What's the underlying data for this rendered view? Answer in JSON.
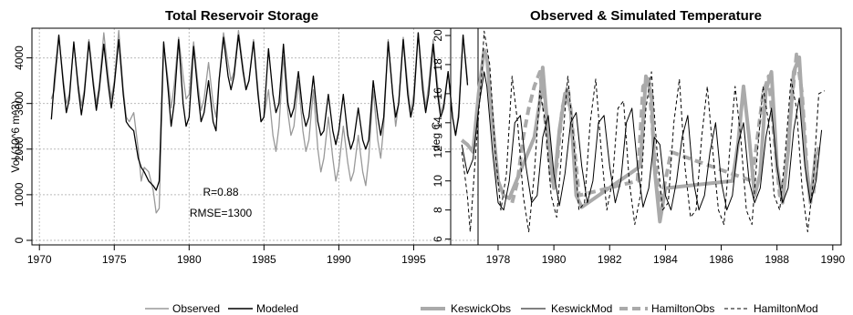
{
  "chart_data": [
    {
      "type": "line",
      "title": "Total Reservoir Storage",
      "xlabel": "",
      "ylabel": "Vol (10^6 m^3)",
      "xlim": [
        1969.5,
        1999.3
      ],
      "ylim": [
        -100,
        4650
      ],
      "xticks": [
        1970,
        1975,
        1980,
        1985,
        1990,
        1995
      ],
      "yticks": [
        0,
        1000,
        2000,
        3000,
        4000
      ],
      "grid": true,
      "legend_position": "bottom",
      "annotations": [
        "R=0.88",
        "RMSE=1300"
      ],
      "series": [
        {
          "name": "Observed",
          "color": "#999999",
          "x": [
            1970.8,
            1971.0,
            1971.3,
            1971.6,
            1971.8,
            1972.0,
            1972.3,
            1972.6,
            1972.8,
            1973.0,
            1973.3,
            1973.6,
            1973.8,
            1974.0,
            1974.3,
            1974.6,
            1974.8,
            1975.0,
            1975.3,
            1975.6,
            1975.8,
            1976.0,
            1976.3,
            1976.6,
            1976.8,
            1977.0,
            1977.3,
            1977.6,
            1977.8,
            1978.0,
            1978.3,
            1978.6,
            1978.8,
            1979.0,
            1979.3,
            1979.6,
            1979.8,
            1980.0,
            1980.3,
            1980.6,
            1980.8,
            1981.0,
            1981.3,
            1981.6,
            1981.8,
            1982.0,
            1982.3,
            1982.6,
            1982.8,
            1983.0,
            1983.3,
            1983.6,
            1983.8,
            1984.0,
            1984.3,
            1984.6,
            1984.8,
            1985.0,
            1985.3,
            1985.6,
            1985.8,
            1986.0,
            1986.3,
            1986.6,
            1986.8,
            1987.0,
            1987.3,
            1987.6,
            1987.8,
            1988.0,
            1988.3,
            1988.6,
            1988.8,
            1989.0,
            1989.3,
            1989.6,
            1989.8,
            1990.0,
            1990.3,
            1990.6,
            1990.8,
            1991.0,
            1991.3,
            1991.6,
            1991.8,
            1992.0,
            1992.3,
            1992.6,
            1992.8,
            1993.0,
            1993.3,
            1993.6,
            1993.8,
            1994.0,
            1994.3,
            1994.6,
            1994.8,
            1995.0,
            1995.3,
            1995.6,
            1995.8,
            1996.0,
            1996.3,
            1996.6,
            1996.8,
            1997.0,
            1997.3,
            1997.6,
            1997.8,
            1998.0,
            1998.3,
            1998.6
          ],
          "y": [
            3100,
            3300,
            4450,
            3500,
            3000,
            3200,
            4300,
            3400,
            2950,
            3300,
            4400,
            3500,
            3000,
            3400,
            4550,
            3600,
            3100,
            3500,
            4600,
            3300,
            2700,
            2600,
            2800,
            2000,
            1300,
            1600,
            1500,
            1100,
            600,
            700,
            4300,
            3500,
            2900,
            3400,
            4450,
            3600,
            3100,
            3200,
            4350,
            3400,
            2850,
            3100,
            3900,
            3000,
            2700,
            3500,
            4550,
            3900,
            3500,
            3700,
            4600,
            3800,
            3300,
            3500,
            4400,
            3300,
            2600,
            2700,
            3300,
            2300,
            1950,
            2500,
            4050,
            2800,
            2300,
            2500,
            3500,
            2400,
            1950,
            2200,
            3300,
            2000,
            1500,
            1800,
            2700,
            1800,
            1300,
            1600,
            2500,
            1700,
            1300,
            1500,
            2300,
            1500,
            1200,
            1800,
            3300,
            2200,
            1800,
            2500,
            4400,
            3200,
            2500,
            3000,
            4450,
            3400,
            2800,
            3200,
            4550,
            3500,
            2900,
            3400,
            4400,
            3400,
            2800,
            3000,
            3700,
            2700,
            2300,
            2800,
            4500,
            3500
          ]
        },
        {
          "name": "Modeled",
          "color": "#000000",
          "x": [
            1970.8,
            1971.0,
            1971.3,
            1971.6,
            1971.8,
            1972.0,
            1972.3,
            1972.6,
            1972.8,
            1973.0,
            1973.3,
            1973.6,
            1973.8,
            1974.0,
            1974.3,
            1974.6,
            1974.8,
            1975.0,
            1975.3,
            1975.6,
            1975.8,
            1976.0,
            1976.3,
            1976.6,
            1976.8,
            1977.0,
            1977.3,
            1977.6,
            1977.8,
            1978.0,
            1978.3,
            1978.6,
            1978.8,
            1979.0,
            1979.3,
            1979.6,
            1979.8,
            1980.0,
            1980.3,
            1980.6,
            1980.8,
            1981.0,
            1981.3,
            1981.6,
            1981.8,
            1982.0,
            1982.3,
            1982.6,
            1982.8,
            1983.0,
            1983.3,
            1983.6,
            1983.8,
            1984.0,
            1984.3,
            1984.6,
            1984.8,
            1985.0,
            1985.3,
            1985.6,
            1985.8,
            1986.0,
            1986.3,
            1986.6,
            1986.8,
            1987.0,
            1987.3,
            1987.6,
            1987.8,
            1988.0,
            1988.3,
            1988.6,
            1988.8,
            1989.0,
            1989.3,
            1989.6,
            1989.8,
            1990.0,
            1990.3,
            1990.6,
            1990.8,
            1991.0,
            1991.3,
            1991.6,
            1991.8,
            1992.0,
            1992.3,
            1992.6,
            1992.8,
            1993.0,
            1993.3,
            1993.6,
            1993.8,
            1994.0,
            1994.3,
            1994.6,
            1994.8,
            1995.0,
            1995.3,
            1995.6,
            1995.8,
            1996.0,
            1996.3,
            1996.6,
            1996.8,
            1997.0,
            1997.3,
            1997.6,
            1997.8,
            1998.0,
            1998.3,
            1998.6
          ],
          "y": [
            2650,
            3500,
            4500,
            3400,
            2800,
            3100,
            4350,
            3300,
            2750,
            3200,
            4350,
            3400,
            2850,
            3300,
            4300,
            3400,
            2900,
            3400,
            4400,
            3200,
            2600,
            2500,
            2400,
            1800,
            1600,
            1500,
            1300,
            1200,
            1100,
            1300,
            4350,
            3300,
            2500,
            3000,
            4400,
            3000,
            2500,
            2700,
            4250,
            3200,
            2600,
            2800,
            3500,
            2600,
            2400,
            3500,
            4450,
            3600,
            3300,
            3600,
            4500,
            3700,
            3300,
            3500,
            4350,
            3200,
            2600,
            2700,
            4200,
            3200,
            2800,
            3000,
            4300,
            3000,
            2700,
            2900,
            3700,
            2800,
            2500,
            2700,
            3600,
            2600,
            2300,
            2400,
            3200,
            2400,
            2100,
            2400,
            3200,
            2300,
            2000,
            2200,
            2900,
            2200,
            2000,
            2200,
            3500,
            2700,
            2300,
            2700,
            4350,
            3200,
            2700,
            3000,
            4400,
            3200,
            2700,
            3000,
            4550,
            3300,
            2800,
            3200,
            4300,
            3200,
            2700,
            2900,
            3700,
            2700,
            2300,
            2700,
            4500,
            3400
          ]
        }
      ]
    },
    {
      "type": "line",
      "title": "Observed & Simulated Temperature",
      "xlabel": "",
      "ylabel": "deg C",
      "xlim": [
        1976.3,
        1990.3
      ],
      "ylim": [
        5.6,
        20.5
      ],
      "xticks": [
        1978,
        1980,
        1982,
        1984,
        1986,
        1988,
        1990
      ],
      "yticks": [
        6,
        8,
        10,
        12,
        14,
        16,
        18,
        20
      ],
      "grid": false,
      "legend_position": "bottom",
      "series": [
        {
          "name": "KeswickObs",
          "color": "#aaaaaa",
          "x": [
            1976.7,
            1976.9,
            1977.1,
            1977.3,
            1977.5,
            1977.6,
            1977.8,
            1978.0,
            1978.2,
            1978.4,
            1979.3,
            1979.5,
            1979.6,
            1979.8,
            1980.0,
            1980.2,
            1980.4,
            1980.6,
            1980.8,
            1981.0,
            1983.1,
            1983.3,
            1983.5,
            1983.6,
            1983.8,
            1984.0,
            1986.4,
            1986.6,
            1986.8,
            1987.0,
            1987.2,
            1987.4,
            1987.6,
            1987.8,
            1988.0,
            1988.2,
            1988.4,
            1988.6,
            1988.8,
            1989.0,
            1989.2,
            1989.4
          ],
          "y": [
            12.8,
            12.5,
            12.0,
            16.0,
            19.0,
            18.5,
            14.0,
            10.0,
            9.0,
            8.8,
            13.0,
            15.5,
            17.8,
            13.0,
            9.5,
            13.5,
            16.0,
            15.0,
            9.0,
            8.2,
            11.0,
            17.2,
            16.0,
            11.0,
            7.2,
            9.5,
            10.0,
            12.5,
            16.5,
            13.0,
            9.0,
            10.5,
            16.2,
            17.5,
            11.0,
            8.5,
            12.0,
            17.5,
            18.5,
            12.0,
            8.5,
            12.0
          ]
        },
        {
          "name": "KeswickMod",
          "color": "#000000",
          "x": [
            1976.7,
            1976.9,
            1977.1,
            1977.3,
            1977.5,
            1977.6,
            1977.8,
            1978.0,
            1978.2,
            1978.4,
            1978.6,
            1978.8,
            1979.0,
            1979.2,
            1979.4,
            1979.6,
            1979.8,
            1980.0,
            1980.2,
            1980.4,
            1980.6,
            1980.8,
            1981.0,
            1981.2,
            1981.4,
            1981.6,
            1981.8,
            1982.0,
            1982.2,
            1982.4,
            1982.6,
            1982.8,
            1983.0,
            1983.2,
            1983.4,
            1983.6,
            1983.8,
            1984.0,
            1984.2,
            1984.4,
            1984.6,
            1984.8,
            1985.0,
            1985.2,
            1985.4,
            1985.6,
            1985.8,
            1986.0,
            1986.2,
            1986.4,
            1986.6,
            1986.8,
            1987.0,
            1987.2,
            1987.4,
            1987.6,
            1987.8,
            1988.0,
            1988.2,
            1988.4,
            1988.6,
            1988.8,
            1989.0,
            1989.2,
            1989.4,
            1989.6
          ],
          "y": [
            12.5,
            10.5,
            11.5,
            15.0,
            17.5,
            16.5,
            12.0,
            8.5,
            8.0,
            10.0,
            14.0,
            14.5,
            11.0,
            8.5,
            9.0,
            13.0,
            14.5,
            10.5,
            8.3,
            10.5,
            14.0,
            14.7,
            11.0,
            8.5,
            10.0,
            14.0,
            14.5,
            11.0,
            8.5,
            10.0,
            14.0,
            15.0,
            11.0,
            8.2,
            9.5,
            13.0,
            12.5,
            9.0,
            8.0,
            10.0,
            13.0,
            14.5,
            10.0,
            8.0,
            9.0,
            12.0,
            14.0,
            10.0,
            8.0,
            9.0,
            12.5,
            14.0,
            10.0,
            8.5,
            9.5,
            13.0,
            15.0,
            11.0,
            8.5,
            9.5,
            13.5,
            15.7,
            11.0,
            8.5,
            10.0,
            13.5
          ]
        },
        {
          "name": "HamiltonObs",
          "color": "#aaaaaa",
          "x": [
            1978.5,
            1978.7,
            1978.9,
            1979.1,
            1979.3,
            1979.5,
            1979.7,
            1979.9,
            1980.1,
            1980.3,
            1980.5,
            1980.7,
            1980.9,
            1983.0,
            1983.2,
            1983.4,
            1983.6,
            1983.8,
            1984.0,
            1984.2,
            1987.1,
            1987.3,
            1987.5,
            1987.7,
            1987.9,
            1988.1,
            1988.3,
            1988.5,
            1988.7,
            1988.9,
            1989.1,
            1989.3,
            1989.5
          ],
          "y": [
            8.5,
            10.0,
            13.0,
            15.0,
            16.5,
            17.5,
            14.0,
            10.0,
            11.0,
            15.0,
            16.5,
            13.0,
            9.0,
            10.0,
            16.5,
            17.0,
            12.0,
            8.5,
            10.0,
            12.0,
            10.0,
            13.0,
            16.0,
            17.2,
            13.0,
            9.0,
            10.5,
            15.0,
            18.7,
            16.0,
            10.0,
            9.0,
            12.5
          ]
        },
        {
          "name": "HamiltonMod",
          "color": "#000000",
          "x": [
            1976.7,
            1976.9,
            1977.0,
            1977.2,
            1977.4,
            1977.5,
            1977.7,
            1977.9,
            1978.1,
            1978.3,
            1978.5,
            1978.7,
            1978.9,
            1979.1,
            1979.3,
            1979.5,
            1979.7,
            1979.9,
            1980.1,
            1980.3,
            1980.5,
            1980.7,
            1980.9,
            1981.1,
            1981.3,
            1981.5,
            1981.7,
            1981.9,
            1982.1,
            1982.3,
            1982.5,
            1982.7,
            1982.9,
            1983.1,
            1983.3,
            1983.5,
            1983.7,
            1983.9,
            1984.1,
            1984.3,
            1984.5,
            1984.7,
            1984.9,
            1985.1,
            1985.3,
            1985.5,
            1985.7,
            1985.9,
            1986.1,
            1986.3,
            1986.5,
            1986.7,
            1986.9,
            1987.1,
            1987.3,
            1987.5,
            1987.7,
            1987.9,
            1988.1,
            1988.3,
            1988.5,
            1988.7,
            1988.9,
            1989.1,
            1989.3,
            1989.5,
            1989.7
          ],
          "y": [
            12.0,
            9.0,
            6.5,
            12.0,
            17.0,
            20.3,
            18.0,
            12.0,
            8.0,
            10.5,
            17.2,
            14.0,
            9.0,
            6.5,
            10.5,
            16.2,
            14.0,
            9.0,
            7.5,
            12.5,
            17.2,
            13.0,
            8.0,
            8.5,
            14.0,
            17.0,
            12.0,
            8.0,
            10.0,
            15.0,
            15.5,
            10.0,
            7.0,
            9.0,
            15.0,
            17.5,
            12.0,
            8.0,
            8.5,
            14.0,
            17.0,
            11.0,
            7.5,
            8.0,
            13.0,
            16.5,
            12.0,
            8.0,
            7.0,
            12.0,
            16.5,
            13.0,
            8.0,
            7.0,
            12.0,
            16.5,
            14.0,
            9.0,
            8.0,
            12.0,
            17.0,
            15.0,
            9.5,
            6.5,
            10.0,
            16.0,
            16.2
          ]
        }
      ]
    }
  ]
}
